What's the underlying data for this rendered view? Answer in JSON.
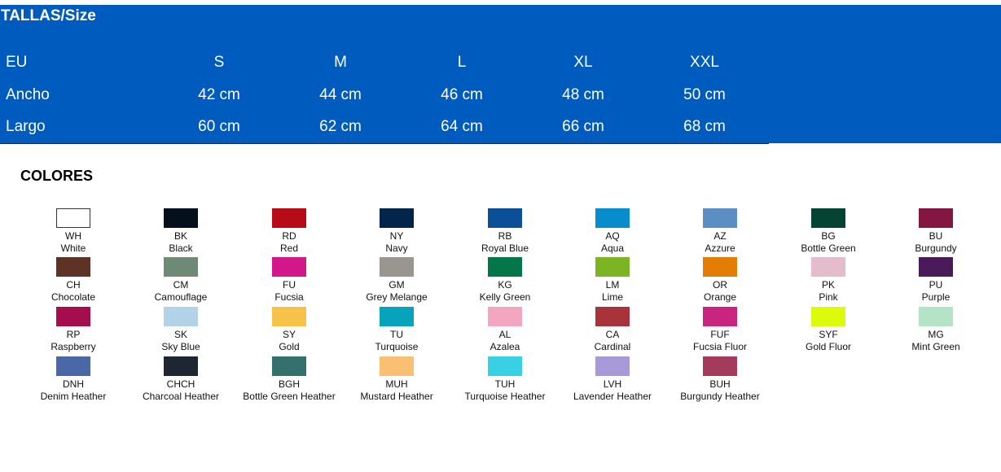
{
  "sizes": {
    "title": "TALLAS/Size",
    "rows": [
      {
        "label": "EU",
        "values": [
          "S",
          "M",
          "L",
          "XL",
          "XXL"
        ]
      },
      {
        "label": "Ancho",
        "values": [
          "42 cm",
          "44 cm",
          "46 cm",
          "48 cm",
          "50 cm"
        ]
      },
      {
        "label": "Largo",
        "values": [
          "60 cm",
          "62 cm",
          "64 cm",
          "66 cm",
          "68 cm"
        ]
      }
    ]
  },
  "colors_title": "COLORES",
  "colors": [
    {
      "code": "WH",
      "name": "White",
      "hex": "#ffffff"
    },
    {
      "code": "BK",
      "name": "Black",
      "hex": "#04111d"
    },
    {
      "code": "RD",
      "name": "Red",
      "hex": "#b70c17"
    },
    {
      "code": "NY",
      "name": "Navy",
      "hex": "#03254c"
    },
    {
      "code": "RB",
      "name": "Royal Blue",
      "hex": "#0b4f98"
    },
    {
      "code": "AQ",
      "name": "Aqua",
      "hex": "#078ccc"
    },
    {
      "code": "AZ",
      "name": "Azzure",
      "hex": "#5b8ec3"
    },
    {
      "code": "BG",
      "name": "Bottle Green",
      "hex": "#054433"
    },
    {
      "code": "BU",
      "name": "Burgundy",
      "hex": "#841642"
    },
    {
      "code": "CH",
      "name": "Chocolate",
      "hex": "#5e3224"
    },
    {
      "code": "CM",
      "name": "Camouflage",
      "hex": "#6e8a76"
    },
    {
      "code": "FU",
      "name": "Fucsia",
      "hex": "#d1178a"
    },
    {
      "code": "GM",
      "name": "Grey Melange",
      "hex": "#99968f"
    },
    {
      "code": "KG",
      "name": "Kelly Green",
      "hex": "#05754a"
    },
    {
      "code": "LM",
      "name": "Lime",
      "hex": "#7db424"
    },
    {
      "code": "OR",
      "name": "Orange",
      "hex": "#e47d06"
    },
    {
      "code": "PK",
      "name": "Pink",
      "hex": "#e5bccb"
    },
    {
      "code": "PU",
      "name": "Purple",
      "hex": "#4a1a5a"
    },
    {
      "code": "RP",
      "name": "Raspberry",
      "hex": "#a50d4d"
    },
    {
      "code": "SK",
      "name": "Sky Blue",
      "hex": "#b2d2e8"
    },
    {
      "code": "SY",
      "name": "Gold",
      "hex": "#f6c249"
    },
    {
      "code": "TU",
      "name": "Turquoise",
      "hex": "#07a2bc"
    },
    {
      "code": "AL",
      "name": "Azalea",
      "hex": "#f3a6bf"
    },
    {
      "code": "CA",
      "name": "Cardinal",
      "hex": "#a8333b"
    },
    {
      "code": "FUF",
      "name": "Fucsia Fluor",
      "hex": "#c9247f"
    },
    {
      "code": "SYF",
      "name": "Gold Fluor",
      "hex": "#dcfb0c"
    },
    {
      "code": "MG",
      "name": "Mint Green",
      "hex": "#b4e3c6"
    },
    {
      "code": "DNH",
      "name": "Denim Heather",
      "hex": "#4a68a6"
    },
    {
      "code": "CHCH",
      "name": "Charcoal Heather",
      "hex": "#1e2631"
    },
    {
      "code": "BGH",
      "name": "Bottle Green Heather",
      "hex": "#34706c"
    },
    {
      "code": "MUH",
      "name": "Mustard Heather",
      "hex": "#f9bf72"
    },
    {
      "code": "TUH",
      "name": "Turquoise Heather",
      "hex": "#38d0e2"
    },
    {
      "code": "LVH",
      "name": "Lavender Heather",
      "hex": "#a89ad8"
    },
    {
      "code": "BUH",
      "name": "Burgundy Heather",
      "hex": "#a43a5c"
    }
  ]
}
